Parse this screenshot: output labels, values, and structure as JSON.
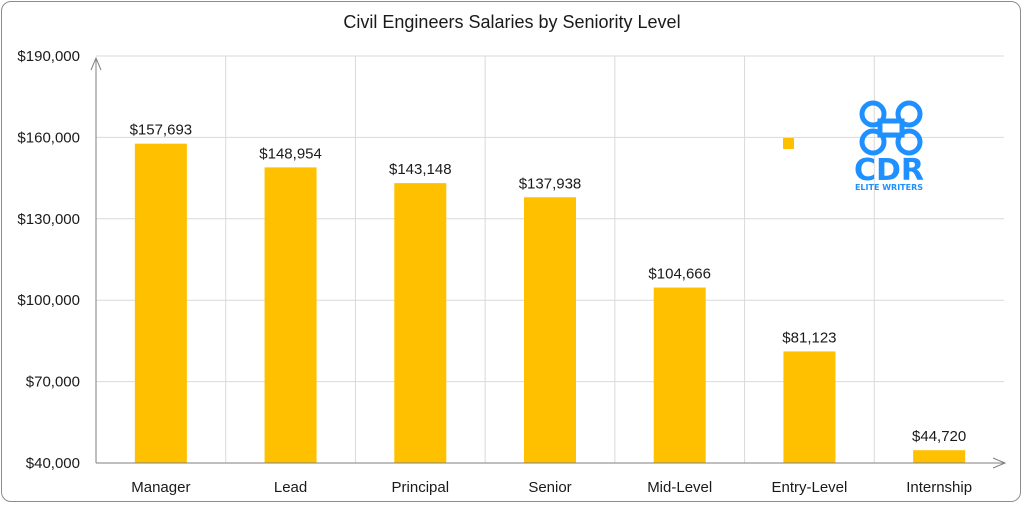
{
  "chart_data": {
    "type": "bar",
    "title": "Civil Engineers Salaries by Seniority Level",
    "xlabel": "",
    "ylabel": "",
    "categories": [
      "Manager",
      "Lead",
      "Principal",
      "Senior",
      "Mid-Level",
      "Entry-Level",
      "Internship"
    ],
    "values": [
      157693,
      148954,
      143148,
      137938,
      104666,
      81123,
      44720
    ],
    "data_labels": [
      "$157,693",
      "$148,954",
      "$143,148",
      "$137,938",
      "$104,666",
      "$81,123",
      "$44,720"
    ],
    "ylim": [
      40000,
      190000
    ],
    "yticks": [
      40000,
      70000,
      100000,
      130000,
      160000,
      190000
    ],
    "ytick_labels": [
      "$40,000",
      "$70,000",
      "$100,000",
      "$130,000",
      "$160,000",
      "$190,000"
    ],
    "bar_color": "#FFC000",
    "grid": true,
    "legend": "none"
  },
  "logo": {
    "text": "CDR",
    "subtext": "ELITE WRITERS",
    "color": "#1E90FF",
    "icon": "command-key-icon"
  },
  "colors": {
    "grid": "#d9d9d9",
    "axis": "#7f7f7f",
    "accent_marker": "#FFC000"
  }
}
